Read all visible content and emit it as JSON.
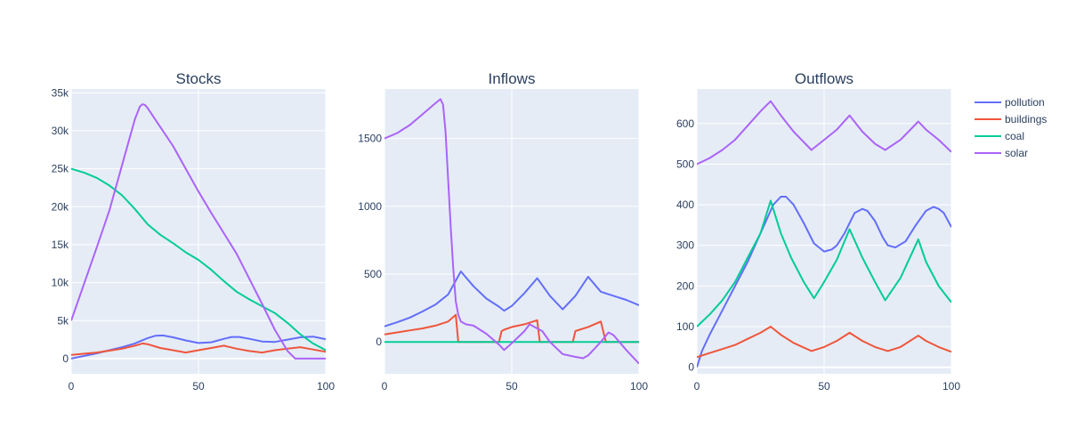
{
  "chart_data": [
    {
      "type": "line",
      "title": "Stocks",
      "xlim": [
        0,
        100
      ],
      "ylim": [
        -2000,
        35500
      ],
      "xticks": [
        0,
        50,
        100
      ],
      "yticks": [
        0,
        5000,
        10000,
        15000,
        20000,
        25000,
        30000,
        35000
      ],
      "ytick_labels": [
        "0",
        "5k",
        "10k",
        "15k",
        "20k",
        "25k",
        "30k",
        "35k"
      ],
      "grid": true,
      "series": [
        {
          "name": "pollution",
          "x": [
            0,
            10,
            20,
            25,
            30,
            33,
            36,
            40,
            45,
            50,
            55,
            60,
            63,
            66,
            70,
            75,
            80,
            85,
            90,
            95,
            100
          ],
          "y": [
            0,
            700,
            1500,
            2000,
            2700,
            3000,
            3050,
            2800,
            2400,
            2050,
            2150,
            2600,
            2850,
            2850,
            2600,
            2250,
            2200,
            2500,
            2800,
            2900,
            2550
          ]
        },
        {
          "name": "buildings",
          "x": [
            0,
            10,
            20,
            25,
            28,
            30,
            35,
            40,
            45,
            50,
            55,
            60,
            65,
            70,
            75,
            80,
            85,
            90,
            95,
            100
          ],
          "y": [
            500,
            800,
            1300,
            1700,
            2000,
            1900,
            1400,
            1100,
            800,
            1100,
            1400,
            1700,
            1300,
            1000,
            800,
            1100,
            1300,
            1500,
            1200,
            900
          ]
        },
        {
          "name": "coal",
          "x": [
            0,
            5,
            10,
            15,
            20,
            25,
            30,
            35,
            40,
            45,
            50,
            55,
            60,
            65,
            70,
            75,
            80,
            85,
            90,
            95,
            100
          ],
          "y": [
            25000,
            24500,
            23800,
            22800,
            21500,
            19700,
            17700,
            16300,
            15200,
            14000,
            13000,
            11700,
            10200,
            8800,
            7800,
            6900,
            6000,
            4700,
            3200,
            2000,
            1100
          ]
        },
        {
          "name": "solar",
          "x": [
            0,
            5,
            10,
            15,
            20,
            25,
            27,
            28,
            29,
            30,
            35,
            40,
            45,
            50,
            55,
            60,
            65,
            70,
            75,
            80,
            85,
            88,
            90,
            95,
            100
          ],
          "y": [
            5000,
            9800,
            14600,
            19500,
            25500,
            31500,
            33200,
            33500,
            33400,
            33000,
            30500,
            28000,
            25000,
            22000,
            19200,
            16500,
            13800,
            10500,
            7200,
            3800,
            1000,
            0,
            0,
            0,
            0
          ]
        }
      ]
    },
    {
      "type": "line",
      "title": "Inflows",
      "xlim": [
        0,
        100
      ],
      "ylim": [
        -235,
        1865
      ],
      "xticks": [
        0,
        50,
        100
      ],
      "yticks": [
        0,
        500,
        1000,
        1500
      ],
      "ytick_labels": [
        "0",
        "500",
        "1000",
        "1500"
      ],
      "grid": true,
      "series": [
        {
          "name": "pollution",
          "x": [
            0,
            5,
            10,
            15,
            20,
            25,
            30,
            35,
            40,
            45,
            47,
            50,
            55,
            60,
            65,
            70,
            75,
            80,
            85,
            90,
            95,
            100
          ],
          "y": [
            115,
            145,
            180,
            225,
            275,
            350,
            520,
            410,
            320,
            260,
            230,
            265,
            360,
            470,
            340,
            240,
            340,
            480,
            370,
            340,
            310,
            270
          ]
        },
        {
          "name": "buildings",
          "x": [
            0,
            5,
            10,
            15,
            20,
            25,
            28,
            29,
            30,
            35,
            40,
            45,
            46,
            47,
            50,
            55,
            60,
            61,
            62,
            65,
            70,
            74,
            75,
            80,
            85,
            87,
            88,
            90,
            95,
            100
          ],
          "y": [
            55,
            70,
            85,
            100,
            120,
            150,
            200,
            0,
            0,
            0,
            0,
            0,
            80,
            90,
            110,
            130,
            160,
            0,
            0,
            0,
            0,
            0,
            80,
            110,
            150,
            0,
            0,
            0,
            0,
            0
          ]
        },
        {
          "name": "coal",
          "x": [
            0,
            100
          ],
          "y": [
            0,
            0
          ]
        },
        {
          "name": "solar",
          "x": [
            0,
            5,
            10,
            15,
            20,
            22,
            23,
            24,
            25,
            26,
            27,
            28,
            29,
            30,
            32,
            35,
            40,
            45,
            47,
            50,
            55,
            57,
            60,
            62,
            65,
            70,
            75,
            78,
            80,
            85,
            88,
            90,
            95,
            100
          ],
          "y": [
            1500,
            1540,
            1600,
            1680,
            1760,
            1790,
            1750,
            1550,
            1200,
            850,
            550,
            300,
            200,
            150,
            130,
            120,
            60,
            -20,
            -60,
            -10,
            80,
            130,
            100,
            80,
            0,
            -90,
            -110,
            -120,
            -100,
            0,
            70,
            50,
            -60,
            -160
          ]
        }
      ]
    },
    {
      "type": "line",
      "title": "Outflows",
      "xlim": [
        0,
        100
      ],
      "ylim": [
        -16,
        685
      ],
      "xticks": [
        0,
        50,
        100
      ],
      "yticks": [
        0,
        100,
        200,
        300,
        400,
        500,
        600
      ],
      "ytick_labels": [
        "0",
        "100",
        "200",
        "300",
        "400",
        "500",
        "600"
      ],
      "grid": true,
      "series": [
        {
          "name": "pollution",
          "x": [
            0,
            2,
            5,
            10,
            15,
            20,
            25,
            30,
            33,
            35,
            38,
            42,
            46,
            50,
            53,
            55,
            58,
            62,
            65,
            67,
            70,
            73,
            75,
            78,
            82,
            86,
            90,
            93,
            95,
            97,
            100
          ],
          "y": [
            0,
            40,
            80,
            140,
            200,
            260,
            330,
            400,
            420,
            420,
            400,
            355,
            305,
            285,
            290,
            300,
            330,
            380,
            390,
            385,
            360,
            320,
            300,
            295,
            310,
            350,
            385,
            395,
            390,
            380,
            345
          ]
        },
        {
          "name": "buildings",
          "x": [
            0,
            5,
            10,
            15,
            20,
            25,
            29,
            33,
            38,
            45,
            50,
            55,
            60,
            65,
            70,
            75,
            80,
            87,
            90,
            95,
            100
          ],
          "y": [
            25,
            35,
            45,
            55,
            70,
            85,
            100,
            80,
            60,
            40,
            50,
            65,
            85,
            65,
            50,
            40,
            50,
            78,
            65,
            50,
            38
          ]
        },
        {
          "name": "coal",
          "x": [
            0,
            5,
            10,
            15,
            20,
            25,
            29,
            33,
            37,
            42,
            46,
            50,
            55,
            60,
            65,
            70,
            74,
            80,
            87,
            90,
            95,
            100
          ],
          "y": [
            100,
            130,
            165,
            210,
            270,
            330,
            410,
            330,
            270,
            210,
            170,
            210,
            265,
            340,
            270,
            210,
            165,
            220,
            315,
            260,
            200,
            160
          ]
        },
        {
          "name": "solar",
          "x": [
            0,
            5,
            10,
            15,
            20,
            25,
            29,
            33,
            38,
            45,
            50,
            55,
            60,
            65,
            70,
            74,
            80,
            87,
            90,
            95,
            100
          ],
          "y": [
            500,
            515,
            535,
            560,
            595,
            630,
            655,
            620,
            580,
            535,
            560,
            585,
            620,
            580,
            550,
            535,
            560,
            605,
            585,
            560,
            530
          ]
        }
      ]
    }
  ],
  "legend": {
    "position": "right",
    "items": [
      "pollution",
      "buildings",
      "coal",
      "solar"
    ]
  },
  "colors": {
    "pollution": "#636efa",
    "buildings": "#ef553b",
    "coal": "#00cc96",
    "solar": "#ab63fa",
    "plot_bg": "#e5ecf6",
    "grid": "#ffffff",
    "text": "#2a3f5f"
  }
}
